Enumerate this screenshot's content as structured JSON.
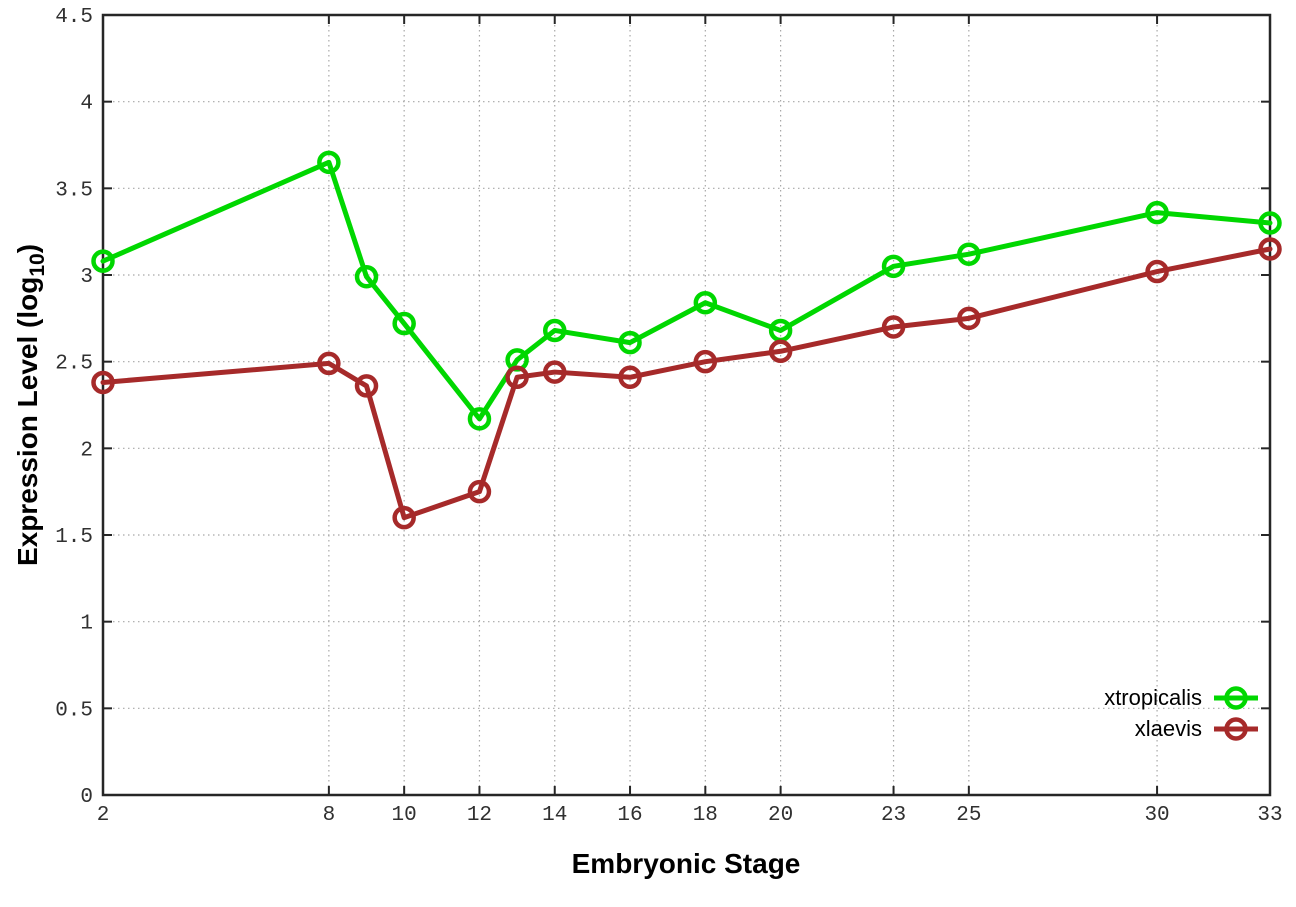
{
  "axes": {
    "x_label": "Embryonic Stage",
    "y_label_main": "Expression Level (log",
    "y_label_sub": "10",
    "y_label_close": ")"
  },
  "legend": {
    "position": "bottom-right",
    "items": [
      {
        "label": "xtropicalis",
        "color": "#00d700"
      },
      {
        "label": "xlaevis",
        "color": "#a62a2a"
      }
    ]
  },
  "colors": {
    "background": "#ffffff",
    "border": "#262626",
    "grid": "#a8a8a8",
    "tick_text": "#303030",
    "series_green": "#00d700",
    "series_brown": "#a62a2a"
  },
  "chart_data": {
    "type": "line",
    "title": "",
    "xlabel": "Embryonic Stage",
    "ylabel": "Expression Level (log10)",
    "xlim": [
      2,
      33
    ],
    "ylim": [
      0,
      4.5
    ],
    "grid": true,
    "legend_position": "bottom-right",
    "x": [
      2,
      8,
      9,
      10,
      12,
      13,
      14,
      16,
      18,
      20,
      23,
      25,
      30,
      33
    ],
    "x_tick_values": [
      2,
      8,
      10,
      12,
      14,
      16,
      18,
      20,
      23,
      25,
      30,
      33
    ],
    "x_tick_labels": [
      "2",
      "8",
      "10",
      "12",
      "14",
      "16",
      "18",
      "20",
      "23",
      "25",
      "30",
      "33"
    ],
    "y_tick_values": [
      0,
      0.5,
      1,
      1.5,
      2,
      2.5,
      3,
      3.5,
      4,
      4.5
    ],
    "y_tick_labels": [
      "0",
      "0.5",
      "1",
      "1.5",
      "2",
      "2.5",
      "3",
      "3.5",
      "4",
      "4.5"
    ],
    "series": [
      {
        "name": "xtropicalis",
        "color": "#00d700",
        "values": [
          3.08,
          3.65,
          2.99,
          2.72,
          2.17,
          2.51,
          2.68,
          2.61,
          2.84,
          2.68,
          3.05,
          3.12,
          3.36,
          3.3
        ]
      },
      {
        "name": "xlaevis",
        "color": "#a62a2a",
        "values": [
          2.38,
          2.49,
          2.36,
          1.6,
          1.75,
          2.41,
          2.44,
          2.41,
          2.5,
          2.56,
          2.7,
          2.75,
          3.02,
          3.15
        ]
      }
    ]
  }
}
